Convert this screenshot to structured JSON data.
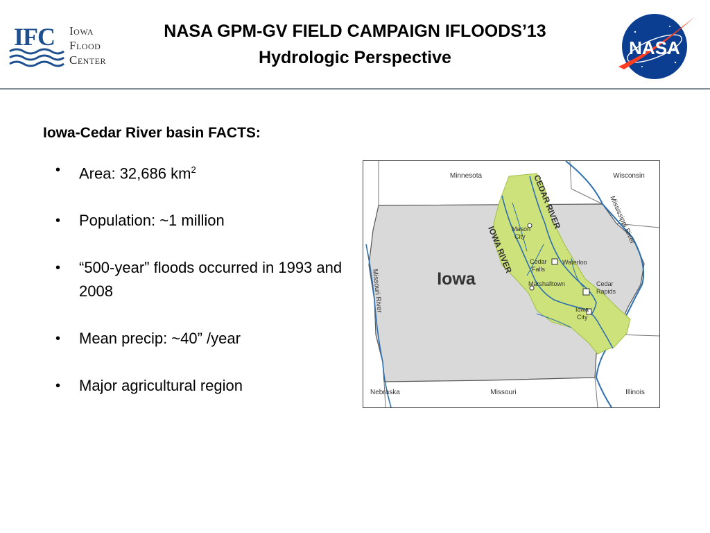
{
  "header": {
    "logo": {
      "abbr": "IFC",
      "name_lines": [
        "Iowa",
        "Flood",
        "Center"
      ]
    },
    "title_line1": "NASA GPM-GV FIELD CAMPAIGN IFLOODS’13",
    "title_line2": "Hydrologic Perspective",
    "nasa_logo_text": "NASA"
  },
  "content": {
    "heading": "Iowa-Cedar River basin FACTS:",
    "bullets": [
      {
        "text": "Area: 32,686 km",
        "sup": "2"
      },
      {
        "text": "Population: ~1 million"
      },
      {
        "text": "“500-year” floods occurred in 1993 and 2008"
      },
      {
        "text": "Mean precip: ~40” /year"
      },
      {
        "text": "Major agricultural region"
      }
    ]
  },
  "map": {
    "state_label": "Iowa",
    "neighbors": {
      "minnesota": "Minnesota",
      "wisconsin": "Wisconsin",
      "nebraska": "Nebraska",
      "missouri": "Missouri",
      "illinois": "Illinois"
    },
    "rivers": {
      "cedar": "CEDAR RIVER",
      "iowa": "IOWA RIVER",
      "mississippi": "Mississippi River",
      "missouri": "Missouri River"
    },
    "cities": {
      "mason_city_1": "Mason",
      "mason_city_2": "City",
      "cedar_falls_1": "Cedar",
      "cedar_falls_2": "Falls",
      "waterloo": "Waterloo",
      "marshalltown": "Marshalltown",
      "cedar_rapids_1": "Cedar",
      "cedar_rapids_2": "Rapids",
      "iowa_city_1": "Iowa",
      "iowa_city_2": "City"
    },
    "colors": {
      "state_fill": "#d9d9d9",
      "basin_fill": "#cde27a",
      "river": "#2c6fb0"
    }
  }
}
